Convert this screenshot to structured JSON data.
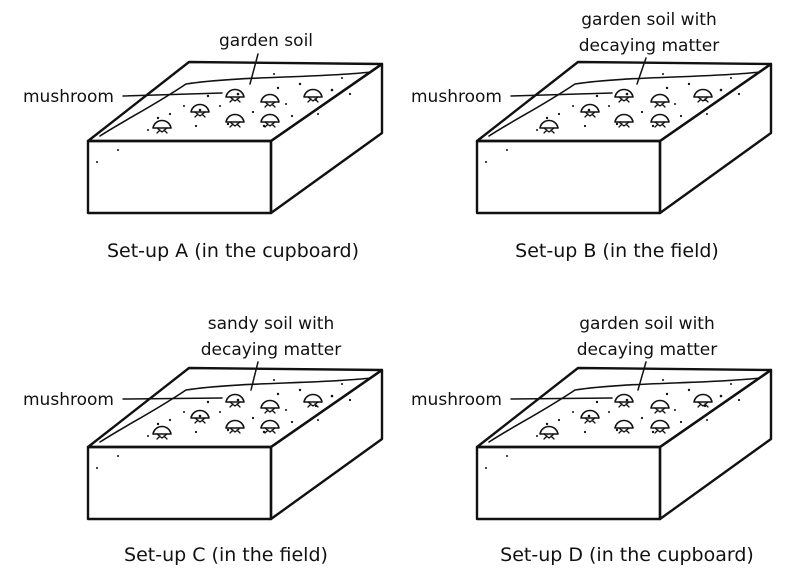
{
  "panels": [
    {
      "id": "a",
      "caption": "Set-up A (in the cupboard)",
      "soil_label": [
        "garden soil"
      ],
      "mushroom_label": "mushroom"
    },
    {
      "id": "b",
      "caption": "Set-up B (in the field)",
      "soil_label": [
        "garden soil with",
        "decaying matter"
      ],
      "mushroom_label": "mushroom"
    },
    {
      "id": "c",
      "caption": "Set-up C (in the field)",
      "soil_label": [
        "sandy soil with",
        "decaying matter"
      ],
      "mushroom_label": "mushroom"
    },
    {
      "id": "d",
      "caption": "Set-up D (in the cupboard)",
      "soil_label": [
        "garden soil with",
        "decaying matter"
      ],
      "mushroom_label": "mushroom"
    }
  ],
  "icons": {
    "container": "soil-box-icon",
    "mushroom": "mushroom-icon"
  }
}
